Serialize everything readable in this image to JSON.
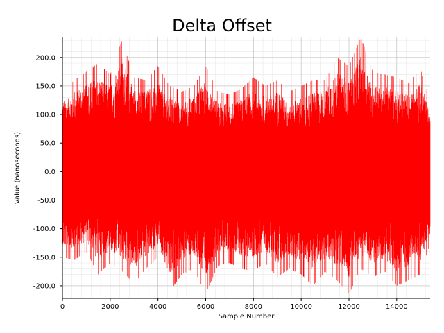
{
  "chart_data": {
    "type": "line",
    "title": "Delta Offset",
    "xlabel": "Sample Number",
    "ylabel": "Value (nanoseconds)",
    "xlim": [
      0,
      15400
    ],
    "ylim": [
      -222,
      235
    ],
    "x_ticks": [
      0,
      2000,
      4000,
      6000,
      8000,
      10000,
      12000,
      14000
    ],
    "x_tick_labels": [
      "0",
      "2000",
      "4000",
      "6000",
      "8000",
      "10000",
      "12000",
      "14000"
    ],
    "y_ticks": [
      200,
      150,
      100,
      50,
      0,
      -50,
      -100,
      -150,
      -200
    ],
    "y_tick_labels": [
      "200.0",
      "150.0",
      "100.0",
      "50.0",
      "0.0",
      "-50.0",
      "-100.0",
      "-150.0",
      "-200.0"
    ],
    "grid": true,
    "line_color": "#ff0000",
    "series": [
      {
        "x": [
          0,
          500,
          1000,
          1500,
          2000,
          2500,
          3000,
          3500,
          4000,
          4500,
          5000,
          5500,
          6000,
          6500,
          7000,
          7500,
          8000,
          8500,
          9000,
          9500,
          10000,
          10500,
          11000,
          11500,
          12000,
          12500,
          13000,
          13500,
          14000,
          14500,
          15000,
          15400
        ],
        "upper": [
          140,
          160,
          175,
          190,
          170,
          230,
          165,
          160,
          185,
          150,
          140,
          150,
          185,
          140,
          135,
          145,
          165,
          150,
          160,
          140,
          150,
          160,
          160,
          200,
          185,
          235,
          175,
          170,
          165,
          155,
          180,
          125
        ],
        "lower": [
          -150,
          -155,
          -140,
          -180,
          -160,
          -175,
          -195,
          -170,
          -150,
          -210,
          -180,
          -170,
          -215,
          -165,
          -160,
          -170,
          -175,
          -160,
          -185,
          -170,
          -180,
          -200,
          -175,
          -190,
          -215,
          -170,
          -185,
          -175,
          -200,
          -190,
          -180,
          -125
        ]
      }
    ]
  }
}
